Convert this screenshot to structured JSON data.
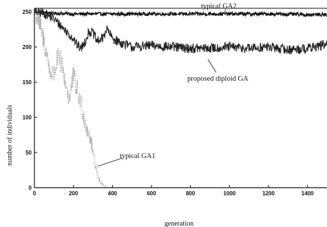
{
  "chart_data": {
    "type": "line",
    "title": "",
    "xlabel": "generation",
    "ylabel": "number of individuals",
    "xlim": [
      0,
      1500
    ],
    "ylim": [
      0,
      255
    ],
    "xticks": [
      0,
      200,
      400,
      600,
      800,
      1000,
      1200,
      1400
    ],
    "yticks": [
      0,
      50,
      100,
      150,
      200,
      250
    ],
    "grid": false,
    "series": [
      {
        "name": "typical GA2",
        "style": "solid-noisy",
        "color": "#111111",
        "points": [
          [
            0,
            250
          ],
          [
            100,
            248
          ],
          [
            200,
            247
          ],
          [
            400,
            247
          ],
          [
            600,
            247
          ],
          [
            800,
            247
          ],
          [
            1000,
            247
          ],
          [
            1200,
            247
          ],
          [
            1400,
            246
          ],
          [
            1500,
            246
          ]
        ],
        "noise": 2.5
      },
      {
        "name": "proposed diploid GA",
        "style": "solid-noisy",
        "color": "#222222",
        "points": [
          [
            0,
            250
          ],
          [
            50,
            248
          ],
          [
            100,
            240
          ],
          [
            150,
            226
          ],
          [
            200,
            212
          ],
          [
            220,
            202
          ],
          [
            240,
            198
          ],
          [
            260,
            208
          ],
          [
            280,
            222
          ],
          [
            300,
            220
          ],
          [
            320,
            208
          ],
          [
            350,
            212
          ],
          [
            370,
            226
          ],
          [
            400,
            212
          ],
          [
            450,
            205
          ],
          [
            500,
            200
          ],
          [
            600,
            202
          ],
          [
            700,
            200
          ],
          [
            800,
            198
          ],
          [
            900,
            198
          ],
          [
            1000,
            200
          ],
          [
            1100,
            198
          ],
          [
            1200,
            200
          ],
          [
            1300,
            196
          ],
          [
            1400,
            198
          ],
          [
            1500,
            204
          ]
        ],
        "noise": 7
      },
      {
        "name": "typical GA1",
        "style": "dotted-noisy",
        "color": "#777777",
        "points": [
          [
            0,
            250
          ],
          [
            20,
            238
          ],
          [
            40,
            218
          ],
          [
            60,
            195
          ],
          [
            80,
            165
          ],
          [
            100,
            160
          ],
          [
            120,
            185
          ],
          [
            140,
            176
          ],
          [
            160,
            148
          ],
          [
            180,
            125
          ],
          [
            200,
            160
          ],
          [
            220,
            138
          ],
          [
            240,
            118
          ],
          [
            260,
            95
          ],
          [
            280,
            78
          ],
          [
            300,
            52
          ],
          [
            320,
            22
          ],
          [
            340,
            6
          ],
          [
            355,
            1
          ],
          [
            370,
            0
          ]
        ],
        "noise": 16
      }
    ],
    "annotations": [
      {
        "text": "typical GA2",
        "target_series": "typical GA2"
      },
      {
        "text": "proposed diploid GA",
        "target_series": "proposed diploid GA"
      },
      {
        "text": "typical GA1",
        "target_series": "typical GA1"
      }
    ]
  }
}
